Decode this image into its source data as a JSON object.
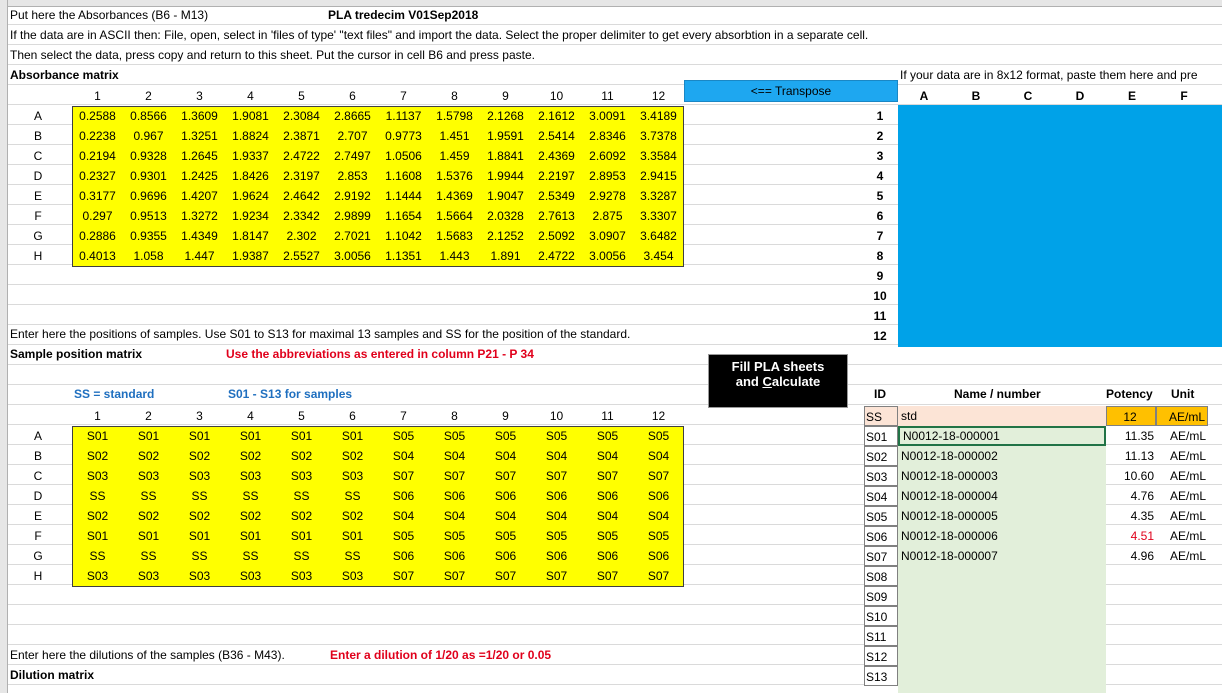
{
  "header": {
    "absorbance_instruction": "Put here the Absorbances (B6 - M13)",
    "version_title": "PLA tredecim V01Sep2018",
    "ascii_instruction": "If the data are in ASCII then: File, open, select in 'files of type' \"text files\" and import the data. Select the proper delimiter to get every absorbtion in a separate cell.",
    "paste_instruction": "Then select the data, press copy and return to this sheet. Put the cursor in cell B6 and press paste.",
    "absorbance_matrix_label": "Absorbance matrix",
    "format_note": "If your data are in 8x12 format, paste them here and pre"
  },
  "transpose_button": "<== Transpose",
  "transpose_cols": [
    "A",
    "B",
    "C",
    "D",
    "E",
    "F"
  ],
  "transpose_rows": [
    "1",
    "2",
    "3",
    "4",
    "5",
    "6",
    "7",
    "8",
    "9",
    "10",
    "11",
    "12"
  ],
  "columns": [
    "1",
    "2",
    "3",
    "4",
    "5",
    "6",
    "7",
    "8",
    "9",
    "10",
    "11",
    "12"
  ],
  "row_letters": [
    "A",
    "B",
    "C",
    "D",
    "E",
    "F",
    "G",
    "H"
  ],
  "absorbance": [
    [
      "0.2588",
      "0.8566",
      "1.3609",
      "1.9081",
      "2.3084",
      "2.8665",
      "1.1137",
      "1.5798",
      "2.1268",
      "2.1612",
      "3.0091",
      "3.4189"
    ],
    [
      "0.2238",
      "0.967",
      "1.3251",
      "1.8824",
      "2.3871",
      "2.707",
      "0.9773",
      "1.451",
      "1.9591",
      "2.5414",
      "2.8346",
      "3.7378"
    ],
    [
      "0.2194",
      "0.9328",
      "1.2645",
      "1.9337",
      "2.4722",
      "2.7497",
      "1.0506",
      "1.459",
      "1.8841",
      "2.4369",
      "2.6092",
      "3.3584"
    ],
    [
      "0.2327",
      "0.9301",
      "1.2425",
      "1.8426",
      "2.3197",
      "2.853",
      "1.1608",
      "1.5376",
      "1.9944",
      "2.2197",
      "2.8953",
      "2.9415"
    ],
    [
      "0.3177",
      "0.9696",
      "1.4207",
      "1.9624",
      "2.4642",
      "2.9192",
      "1.1444",
      "1.4369",
      "1.9047",
      "2.5349",
      "2.9278",
      "3.3287"
    ],
    [
      "0.297",
      "0.9513",
      "1.3272",
      "1.9234",
      "2.3342",
      "2.9899",
      "1.1654",
      "1.5664",
      "2.0328",
      "2.7613",
      "2.875",
      "3.3307"
    ],
    [
      "0.2886",
      "0.9355",
      "1.4349",
      "1.8147",
      "2.302",
      "2.7021",
      "1.1042",
      "1.5683",
      "2.1252",
      "2.5092",
      "3.0907",
      "3.6482"
    ],
    [
      "0.4013",
      "1.058",
      "1.447",
      "1.9387",
      "2.5527",
      "3.0056",
      "1.1351",
      "1.443",
      "1.891",
      "2.4722",
      "3.0056",
      "3.454"
    ]
  ],
  "sample_section": {
    "instruction": "Enter here the positions of samples. Use S01 to S13 for maximal 13 samples and SS for the position of the standard.",
    "label": "Sample position matrix",
    "abbrev_note": "Use the abbreviations as entered in column P21 - P 34",
    "ss_legend": "SS = standard",
    "s_legend": "S01 - S13 for samples"
  },
  "positions": [
    [
      "S01",
      "S01",
      "S01",
      "S01",
      "S01",
      "S01",
      "S05",
      "S05",
      "S05",
      "S05",
      "S05",
      "S05"
    ],
    [
      "S02",
      "S02",
      "S02",
      "S02",
      "S02",
      "S02",
      "S04",
      "S04",
      "S04",
      "S04",
      "S04",
      "S04"
    ],
    [
      "S03",
      "S03",
      "S03",
      "S03",
      "S03",
      "S03",
      "S07",
      "S07",
      "S07",
      "S07",
      "S07",
      "S07"
    ],
    [
      "SS",
      "SS",
      "SS",
      "SS",
      "SS",
      "SS",
      "S06",
      "S06",
      "S06",
      "S06",
      "S06",
      "S06"
    ],
    [
      "S02",
      "S02",
      "S02",
      "S02",
      "S02",
      "S02",
      "S04",
      "S04",
      "S04",
      "S04",
      "S04",
      "S04"
    ],
    [
      "S01",
      "S01",
      "S01",
      "S01",
      "S01",
      "S01",
      "S05",
      "S05",
      "S05",
      "S05",
      "S05",
      "S05"
    ],
    [
      "SS",
      "SS",
      "SS",
      "SS",
      "SS",
      "SS",
      "S06",
      "S06",
      "S06",
      "S06",
      "S06",
      "S06"
    ],
    [
      "S03",
      "S03",
      "S03",
      "S03",
      "S03",
      "S03",
      "S07",
      "S07",
      "S07",
      "S07",
      "S07",
      "S07"
    ]
  ],
  "fill_button": {
    "line1": "Fill PLA sheets",
    "line2_prefix": "and ",
    "line2_underlined": "C",
    "line2_rest": "alculate"
  },
  "id_table": {
    "headers": {
      "id": "ID",
      "name": "Name / number",
      "potency": "Potency",
      "unit": "Unit"
    },
    "rows": [
      {
        "id": "SS",
        "name": "std",
        "potency": "12",
        "unit": "AE/mL"
      },
      {
        "id": "S01",
        "name": "N0012-18-000001",
        "potency": "11.35",
        "unit": "AE/mL"
      },
      {
        "id": "S02",
        "name": "N0012-18-000002",
        "potency": "11.13",
        "unit": "AE/mL"
      },
      {
        "id": "S03",
        "name": "N0012-18-000003",
        "potency": "10.60",
        "unit": "AE/mL"
      },
      {
        "id": "S04",
        "name": "N0012-18-000004",
        "potency": "4.76",
        "unit": "AE/mL"
      },
      {
        "id": "S05",
        "name": "N0012-18-000005",
        "potency": "4.35",
        "unit": "AE/mL"
      },
      {
        "id": "S06",
        "name": "N0012-18-000006",
        "potency": "4.51",
        "unit": "AE/mL"
      },
      {
        "id": "S07",
        "name": "N0012-18-000007",
        "potency": "4.96",
        "unit": "AE/mL"
      },
      {
        "id": "S08",
        "name": "",
        "potency": "",
        "unit": ""
      },
      {
        "id": "S09",
        "name": "",
        "potency": "",
        "unit": ""
      },
      {
        "id": "S10",
        "name": "",
        "potency": "",
        "unit": ""
      },
      {
        "id": "S11",
        "name": "",
        "potency": "",
        "unit": ""
      },
      {
        "id": "S12",
        "name": "",
        "potency": "",
        "unit": ""
      },
      {
        "id": "S13",
        "name": "",
        "potency": "",
        "unit": ""
      }
    ]
  },
  "dilution": {
    "instruction": "Enter here the dilutions of the samples (B36 - M43).",
    "note": "Enter a dilution of 1/20 as =1/20 or 0.05",
    "label": "Dilution matrix"
  },
  "colors": {
    "yellow": "#ffff00",
    "cyan": "#00a2e8",
    "green": "#e2efda",
    "orange": "#ffc000",
    "pink": "#fce4d6",
    "red": "#e0001b",
    "blue": "#1f6fbf"
  }
}
